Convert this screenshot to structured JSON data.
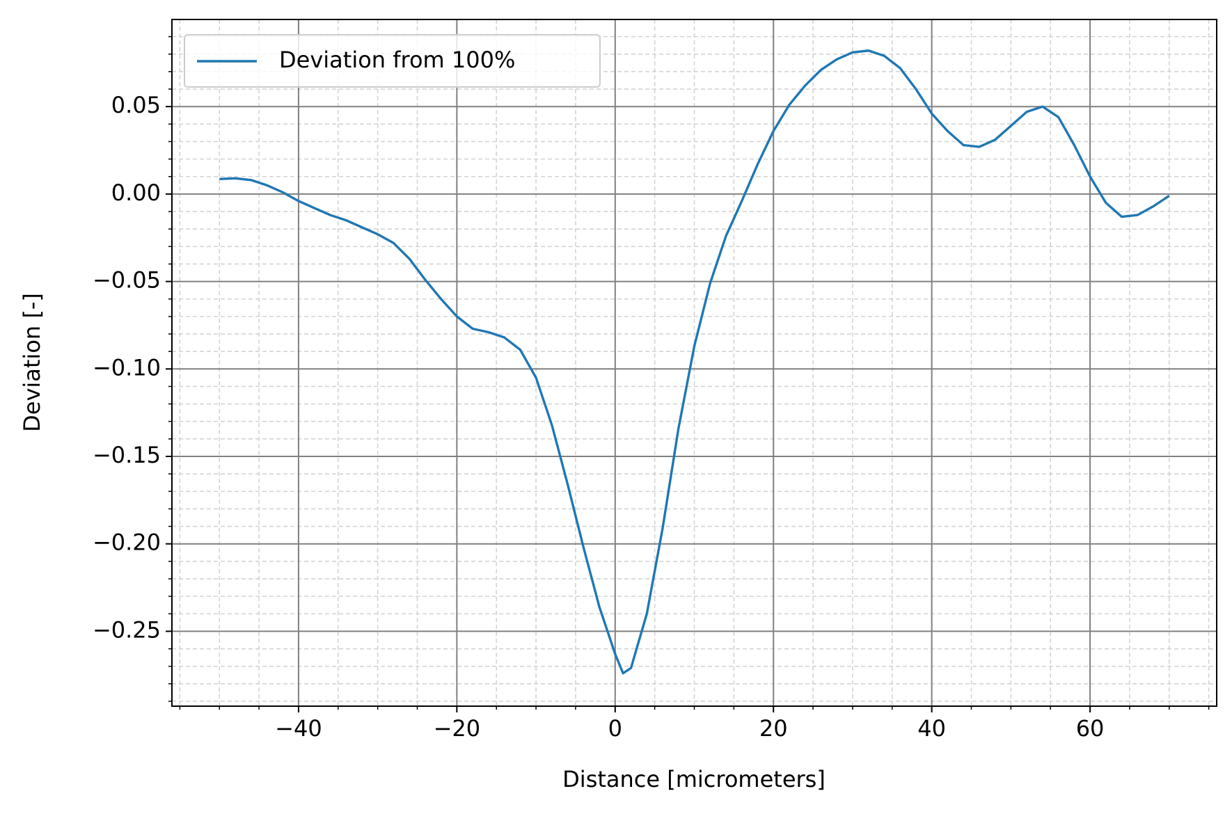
{
  "chart_data": {
    "type": "line",
    "xlabel": "Distance [micrometers]",
    "ylabel": "Deviation [-]",
    "legend": "upper left",
    "grid": true,
    "x": [
      -50,
      -48,
      -46,
      -44,
      -42,
      -40,
      -38,
      -36,
      -34,
      -32,
      -30,
      -28,
      -26,
      -24,
      -22,
      -20,
      -18,
      -16,
      -14,
      -12,
      -10,
      -8,
      -6,
      -4,
      -2,
      0,
      1,
      2,
      4,
      6,
      8,
      10,
      12,
      14,
      16,
      18,
      20,
      22,
      24,
      26,
      28,
      30,
      32,
      34,
      36,
      38,
      40,
      42,
      44,
      46,
      48,
      50,
      52,
      54,
      56,
      58,
      60,
      62,
      64,
      66,
      68,
      70
    ],
    "series": [
      {
        "name": "Deviation from 100%",
        "color": "#1f77b4",
        "values": [
          0.0086,
          0.009,
          0.008,
          0.005,
          0.001,
          -0.004,
          -0.008,
          -0.012,
          -0.015,
          -0.019,
          -0.023,
          -0.028,
          -0.037,
          -0.049,
          -0.06,
          -0.07,
          -0.077,
          -0.079,
          -0.082,
          -0.089,
          -0.105,
          -0.132,
          -0.166,
          -0.202,
          -0.236,
          -0.263,
          -0.274,
          -0.271,
          -0.24,
          -0.191,
          -0.134,
          -0.087,
          -0.051,
          -0.024,
          -0.004,
          0.017,
          0.036,
          0.051,
          0.062,
          0.071,
          0.077,
          0.081,
          0.082,
          0.079,
          0.072,
          0.06,
          0.046,
          0.036,
          0.028,
          0.027,
          0.031,
          0.039,
          0.047,
          0.05,
          0.044,
          0.028,
          0.01,
          -0.005,
          -0.013,
          -0.012,
          -0.007,
          -0.001
        ]
      }
    ],
    "xlim": [
      -56,
      76
    ],
    "ylim": [
      -0.2928,
      0.0998
    ],
    "xticks": [
      {
        "value": -40,
        "label": "−40"
      },
      {
        "value": -20,
        "label": "−20"
      },
      0,
      20,
      40,
      60
    ],
    "yticks": [
      {
        "value": -0.25,
        "label": "−0.25"
      },
      {
        "value": -0.2,
        "label": "−0.20"
      },
      {
        "value": -0.15,
        "label": "−0.15"
      },
      {
        "value": -0.1,
        "label": "−0.10"
      },
      {
        "value": -0.05,
        "label": "−0.05"
      },
      {
        "value": 0,
        "label": "0.00"
      },
      0.05
    ],
    "xminorticks": [
      -55,
      -50,
      -45,
      -35,
      -30,
      -25,
      -15,
      -10,
      -5,
      5,
      10,
      15,
      25,
      30,
      35,
      45,
      50,
      55,
      65,
      70,
      75
    ],
    "yminorticks": [
      -0.29,
      -0.28,
      -0.27,
      -0.26,
      -0.24,
      -0.23,
      -0.22,
      -0.21,
      -0.19,
      -0.18,
      -0.17,
      -0.16,
      -0.14,
      -0.13,
      -0.12,
      -0.11,
      -0.09,
      -0.08,
      -0.07,
      -0.06,
      -0.04,
      -0.03,
      -0.02,
      -0.01,
      0.01,
      0.02,
      0.03,
      0.04,
      0.06,
      0.07,
      0.08,
      0.09
    ]
  }
}
